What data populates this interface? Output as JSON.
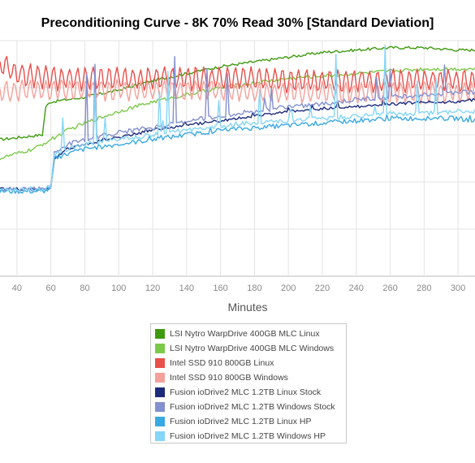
{
  "chart_data": {
    "type": "line",
    "title": "Preconditioning Curve - 8K 70% Read 30% [Standard Deviation]",
    "xlabel": "Minutes",
    "ylabel": "",
    "xlim": [
      30,
      310
    ],
    "ylim": [
      0,
      1
    ],
    "x_ticks": [
      "40",
      "60",
      "80",
      "100",
      "120",
      "140",
      "160",
      "180",
      "200",
      "220",
      "240",
      "260",
      "280",
      "300"
    ],
    "grid": true,
    "legend_position": "bottom",
    "series": [
      {
        "name": "LSI Nytro WarpDrive 400GB MLC Linux",
        "color": "#3f9a10",
        "points": [
          [
            30,
            0.58
          ],
          [
            55,
            0.6
          ],
          [
            57,
            0.72
          ],
          [
            60,
            0.74
          ],
          [
            80,
            0.76
          ],
          [
            100,
            0.79
          ],
          [
            120,
            0.83
          ],
          [
            140,
            0.86
          ],
          [
            160,
            0.89
          ],
          [
            180,
            0.91
          ],
          [
            200,
            0.93
          ],
          [
            220,
            0.95
          ],
          [
            240,
            0.96
          ],
          [
            260,
            0.97
          ],
          [
            280,
            0.97
          ],
          [
            300,
            0.96
          ],
          [
            310,
            0.96
          ]
        ]
      },
      {
        "name": "LSI Nytro WarpDrive 400GB MLC Windows",
        "color": "#7cc94a",
        "points": [
          [
            30,
            0.5
          ],
          [
            50,
            0.54
          ],
          [
            60,
            0.58
          ],
          [
            70,
            0.62
          ],
          [
            80,
            0.65
          ],
          [
            100,
            0.7
          ],
          [
            120,
            0.74
          ],
          [
            140,
            0.77
          ],
          [
            160,
            0.8
          ],
          [
            180,
            0.82
          ],
          [
            200,
            0.84
          ],
          [
            220,
            0.85
          ],
          [
            240,
            0.86
          ],
          [
            260,
            0.87
          ],
          [
            280,
            0.88
          ],
          [
            300,
            0.88
          ],
          [
            310,
            0.88
          ]
        ]
      },
      {
        "name": "Intel SSD 910 800GB Linux",
        "color": "#e8504c",
        "points": [
          [
            30,
            0.9
          ],
          [
            40,
            0.86
          ],
          [
            60,
            0.84
          ],
          [
            80,
            0.84
          ],
          [
            100,
            0.84
          ],
          [
            120,
            0.84
          ],
          [
            140,
            0.84
          ],
          [
            160,
            0.84
          ],
          [
            180,
            0.84
          ],
          [
            200,
            0.83
          ],
          [
            220,
            0.83
          ],
          [
            240,
            0.83
          ],
          [
            260,
            0.83
          ],
          [
            280,
            0.83
          ],
          [
            300,
            0.83
          ],
          [
            310,
            0.83
          ]
        ]
      },
      {
        "name": "Intel SSD 910 800GB Windows",
        "color": "#f4a09a",
        "points": [
          [
            30,
            0.78
          ],
          [
            40,
            0.79
          ],
          [
            60,
            0.79
          ],
          [
            80,
            0.79
          ],
          [
            100,
            0.79
          ],
          [
            120,
            0.79
          ],
          [
            140,
            0.79
          ],
          [
            160,
            0.79
          ],
          [
            180,
            0.78
          ],
          [
            200,
            0.78
          ],
          [
            220,
            0.78
          ],
          [
            240,
            0.78
          ],
          [
            260,
            0.78
          ],
          [
            280,
            0.78
          ],
          [
            300,
            0.78
          ],
          [
            310,
            0.78
          ]
        ]
      },
      {
        "name": "Fusion ioDrive2 MLC 1.2TB Linux Stock",
        "color": "#1c2a7c",
        "points": [
          [
            30,
            0.37
          ],
          [
            55,
            0.37
          ],
          [
            60,
            0.38
          ],
          [
            62,
            0.5
          ],
          [
            70,
            0.54
          ],
          [
            80,
            0.56
          ],
          [
            100,
            0.59
          ],
          [
            120,
            0.62
          ],
          [
            140,
            0.64
          ],
          [
            160,
            0.66
          ],
          [
            180,
            0.68
          ],
          [
            200,
            0.7
          ],
          [
            220,
            0.71
          ],
          [
            240,
            0.72
          ],
          [
            260,
            0.73
          ],
          [
            280,
            0.74
          ],
          [
            300,
            0.74
          ],
          [
            310,
            0.75
          ]
        ]
      },
      {
        "name": "Fusion ioDrive2 MLC 1.2TB Windows Stock",
        "color": "#8490cf",
        "points": [
          [
            30,
            0.37
          ],
          [
            55,
            0.37
          ],
          [
            60,
            0.38
          ],
          [
            62,
            0.52
          ],
          [
            70,
            0.56
          ],
          [
            80,
            0.58
          ],
          [
            100,
            0.61
          ],
          [
            120,
            0.63
          ],
          [
            140,
            0.66
          ],
          [
            160,
            0.68
          ],
          [
            180,
            0.7
          ],
          [
            200,
            0.72
          ],
          [
            220,
            0.73
          ],
          [
            240,
            0.75
          ],
          [
            260,
            0.76
          ],
          [
            280,
            0.77
          ],
          [
            300,
            0.78
          ],
          [
            310,
            0.78
          ]
        ]
      },
      {
        "name": "Fusion ioDrive2 MLC 1.2TB Linux HP",
        "color": "#39a9e1",
        "points": [
          [
            30,
            0.36
          ],
          [
            55,
            0.36
          ],
          [
            60,
            0.37
          ],
          [
            62,
            0.5
          ],
          [
            70,
            0.52
          ],
          [
            80,
            0.54
          ],
          [
            100,
            0.56
          ],
          [
            120,
            0.58
          ],
          [
            140,
            0.6
          ],
          [
            160,
            0.62
          ],
          [
            180,
            0.63
          ],
          [
            200,
            0.64
          ],
          [
            220,
            0.65
          ],
          [
            240,
            0.66
          ],
          [
            260,
            0.67
          ],
          [
            280,
            0.67
          ],
          [
            300,
            0.67
          ],
          [
            310,
            0.66
          ]
        ]
      },
      {
        "name": "Fusion ioDrive2 MLC 1.2TB Windows HP",
        "color": "#85d6f7",
        "points": [
          [
            30,
            0.37
          ],
          [
            55,
            0.37
          ],
          [
            60,
            0.38
          ],
          [
            62,
            0.52
          ],
          [
            70,
            0.54
          ],
          [
            80,
            0.56
          ],
          [
            100,
            0.58
          ],
          [
            120,
            0.6
          ],
          [
            140,
            0.62
          ],
          [
            160,
            0.64
          ],
          [
            180,
            0.65
          ],
          [
            200,
            0.66
          ],
          [
            220,
            0.67
          ],
          [
            240,
            0.68
          ],
          [
            260,
            0.69
          ],
          [
            280,
            0.69
          ],
          [
            300,
            0.7
          ],
          [
            310,
            0.7
          ]
        ]
      }
    ]
  }
}
